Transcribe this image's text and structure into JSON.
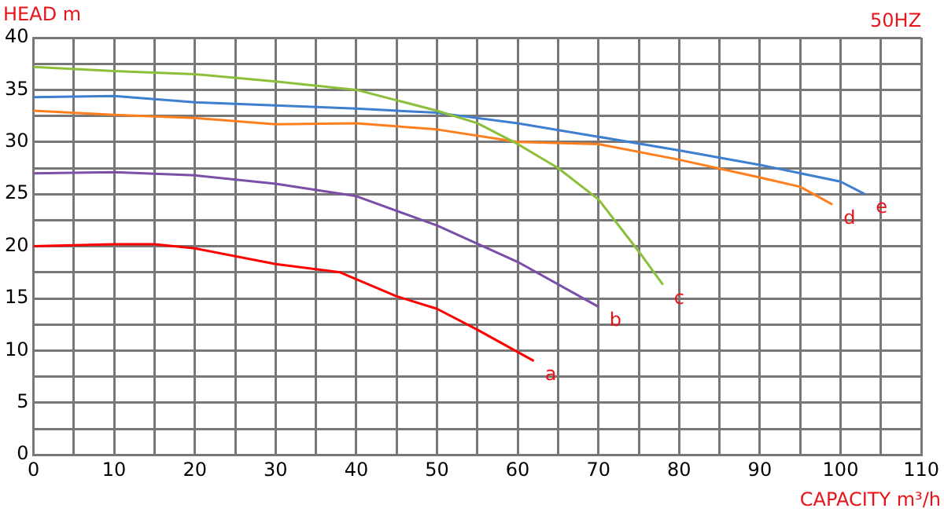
{
  "chart_data": {
    "type": "line",
    "xlabel": "CAPACITY m³/h",
    "ylabel": "HEAD m",
    "annotations": [
      "50HZ"
    ],
    "xlim": [
      0,
      110
    ],
    "xticks": [
      0,
      {
        "value": 5,
        "label": null
      },
      10,
      {
        "value": 15,
        "label": null
      },
      20,
      {
        "value": 25,
        "label": null
      },
      30,
      {
        "value": 35,
        "label": null
      },
      40,
      {
        "value": 45,
        "label": null
      },
      50,
      {
        "value": 55,
        "label": null
      },
      60,
      {
        "value": 65,
        "label": null
      },
      70,
      {
        "value": 75,
        "label": null
      },
      80,
      {
        "value": 85,
        "label": null
      },
      90,
      {
        "value": 95,
        "label": null
      },
      100,
      {
        "value": 105,
        "label": null
      },
      110
    ],
    "ylim": [
      0,
      40
    ],
    "yticks": [
      0,
      {
        "value": 2.5,
        "label": null
      },
      5,
      {
        "value": 7.5,
        "label": null
      },
      10,
      {
        "value": 12.5,
        "label": null
      },
      15,
      {
        "value": 17.5,
        "label": null
      },
      20,
      {
        "value": 22.5,
        "label": null
      },
      25,
      {
        "value": 27.5,
        "label": null
      },
      30,
      {
        "value": 32.5,
        "label": null
      },
      35,
      {
        "value": 37.5,
        "label": null
      },
      40
    ],
    "grid": true,
    "legend": false,
    "marker": "none",
    "line_style": "solid",
    "series": [
      {
        "name": "a",
        "color": "#ff0000",
        "x": [
          0,
          10,
          15,
          20,
          30,
          38,
          45,
          50,
          55,
          62
        ],
        "values": [
          20,
          20.2,
          20.2,
          19.8,
          18.3,
          17.5,
          15.2,
          14,
          12,
          9
        ]
      },
      {
        "name": "b",
        "color": "#7b4fa8",
        "x": [
          0,
          10,
          20,
          30,
          40,
          50,
          60,
          70
        ],
        "values": [
          27,
          27.1,
          26.8,
          26,
          24.8,
          22,
          18.5,
          14.2
        ]
      },
      {
        "name": "c",
        "color": "#8cbf3a",
        "x": [
          0,
          10,
          20,
          30,
          40,
          50,
          55,
          60,
          65,
          70,
          75,
          78
        ],
        "values": [
          37.2,
          36.8,
          36.5,
          35.8,
          35,
          33,
          31.8,
          29.8,
          27.5,
          24.5,
          19.5,
          16.3
        ]
      },
      {
        "name": "d",
        "color": "#ff7f1e",
        "x": [
          0,
          10,
          20,
          30,
          40,
          50,
          60,
          70,
          80,
          90,
          95,
          99
        ],
        "values": [
          33,
          32.6,
          32.3,
          31.7,
          31.8,
          31.2,
          30,
          29.8,
          28.3,
          26.6,
          25.7,
          24
        ]
      },
      {
        "name": "e",
        "color": "#3f7fcf",
        "x": [
          0,
          10,
          20,
          30,
          40,
          50,
          60,
          70,
          80,
          90,
          100,
          103
        ],
        "values": [
          34.3,
          34.4,
          33.8,
          33.5,
          33.2,
          32.8,
          31.8,
          30.5,
          29.2,
          27.8,
          26.2,
          25
        ]
      }
    ]
  }
}
